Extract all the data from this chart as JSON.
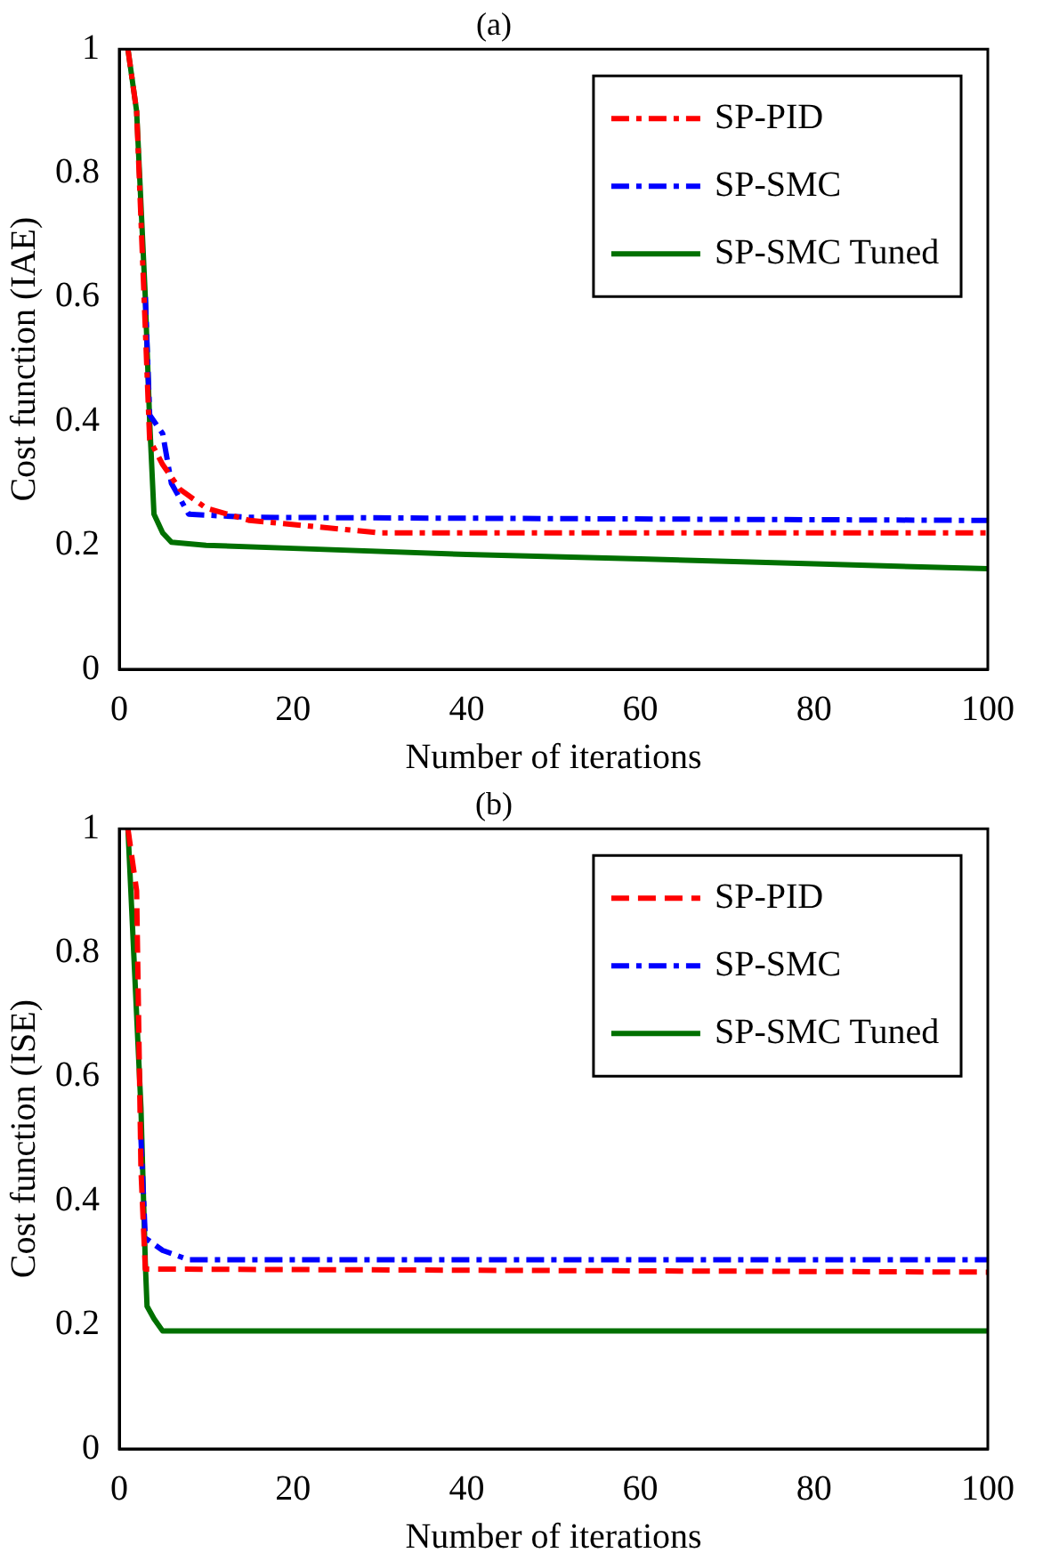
{
  "chart_data": [
    {
      "type": "line",
      "title": "(a)",
      "xlabel": "Number of iterations",
      "ylabel": "Cost function (IAE)",
      "xlim": [
        0,
        100
      ],
      "ylim": [
        0,
        1
      ],
      "xticks": [
        0,
        20,
        40,
        60,
        80,
        100
      ],
      "yticks": [
        0,
        0.2,
        0.4,
        0.6,
        0.8,
        1
      ],
      "grid": false,
      "legend": "top right",
      "marker": "none",
      "series": [
        {
          "name": "SP-PID",
          "color": "#ff0000",
          "line_style": "dashdot",
          "x": [
            1,
            2,
            3,
            3.5,
            5,
            7,
            10,
            15,
            30,
            100
          ],
          "values": [
            1,
            0.9,
            0.55,
            0.37,
            0.33,
            0.29,
            0.26,
            0.24,
            0.22,
            0.22
          ]
        },
        {
          "name": "SP-SMC",
          "color": "#0000ff",
          "line_style": "dashdot",
          "x": [
            3,
            3.5,
            5,
            6,
            8,
            15,
            100
          ],
          "values": [
            0.6,
            0.41,
            0.38,
            0.3,
            0.25,
            0.245,
            0.24
          ]
        },
        {
          "name": "SP-SMC Tuned",
          "color": "#007000",
          "line_style": "solid",
          "x": [
            1,
            2,
            3,
            3.5,
            4,
            5,
            6,
            10,
            20,
            40,
            60,
            80,
            100
          ],
          "values": [
            1,
            0.9,
            0.6,
            0.4,
            0.25,
            0.22,
            0.205,
            0.2,
            0.195,
            0.185,
            0.178,
            0.17,
            0.162
          ]
        }
      ]
    },
    {
      "type": "line",
      "title": "(b)",
      "xlabel": "Number of iterations",
      "ylabel": "Cost function (ISE)",
      "xlim": [
        0,
        100
      ],
      "ylim": [
        0,
        1
      ],
      "xticks": [
        0,
        20,
        40,
        60,
        80,
        100
      ],
      "yticks": [
        0,
        0.2,
        0.4,
        0.6,
        0.8,
        1
      ],
      "grid": false,
      "legend": "top right",
      "marker": "none",
      "series": [
        {
          "name": "SP-PID",
          "color": "#ff0000",
          "line_style": "dashed",
          "x": [
            1,
            2,
            2.5,
            3,
            100
          ],
          "values": [
            1,
            0.9,
            0.45,
            0.29,
            0.285
          ]
        },
        {
          "name": "SP-SMC",
          "color": "#0000ff",
          "line_style": "dashdot",
          "x": [
            2.5,
            3,
            5,
            8,
            100
          ],
          "values": [
            0.5,
            0.34,
            0.32,
            0.305,
            0.305
          ]
        },
        {
          "name": "SP-SMC Tuned",
          "color": "#007000",
          "line_style": "solid",
          "x": [
            1,
            2.5,
            3,
            3.2,
            4,
            5,
            100
          ],
          "values": [
            1,
            0.55,
            0.3,
            0.23,
            0.21,
            0.19,
            0.19
          ]
        }
      ]
    }
  ]
}
